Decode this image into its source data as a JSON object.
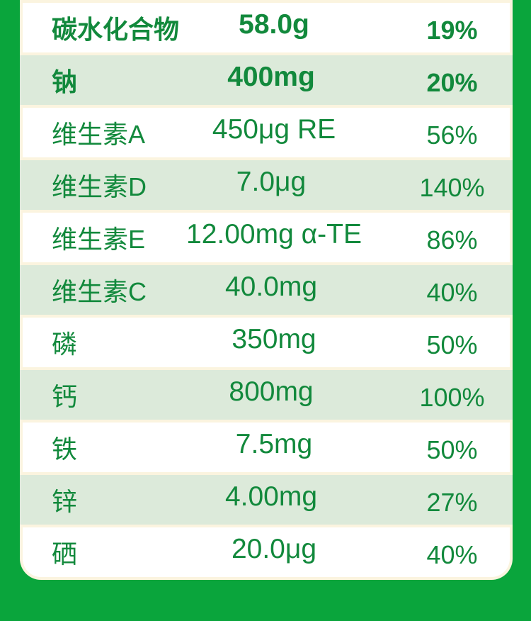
{
  "theme": {
    "background_green": "#0aa53c",
    "row_alt_green": "#dceada",
    "row_white": "#ffffff",
    "card_cream_border": "#fbf4df",
    "text_green": "#12893c"
  },
  "nutrition_table": {
    "columns": [
      "nutrient",
      "amount",
      "nrv_percent"
    ],
    "rows": [
      {
        "nutrient": "碳水化合物",
        "amount": "58.0g",
        "nrv_percent": "19%",
        "bold": true
      },
      {
        "nutrient": "钠",
        "amount": "400mg",
        "nrv_percent": "20%",
        "bold": true
      },
      {
        "nutrient": "维生素A",
        "amount": "450μg RE",
        "nrv_percent": "56%",
        "bold": false
      },
      {
        "nutrient": "维生素D",
        "amount": "7.0μg",
        "nrv_percent": "140%",
        "bold": false
      },
      {
        "nutrient": "维生素E",
        "amount": "12.00mg α-TE",
        "nrv_percent": "86%",
        "bold": false
      },
      {
        "nutrient": "维生素C",
        "amount": "40.0mg",
        "nrv_percent": "40%",
        "bold": false
      },
      {
        "nutrient": "磷",
        "amount": "350mg",
        "nrv_percent": "50%",
        "bold": false
      },
      {
        "nutrient": "钙",
        "amount": "800mg",
        "nrv_percent": "100%",
        "bold": false
      },
      {
        "nutrient": "铁",
        "amount": "7.5mg",
        "nrv_percent": "50%",
        "bold": false
      },
      {
        "nutrient": "锌",
        "amount": "4.00mg",
        "nrv_percent": "27%",
        "bold": false
      },
      {
        "nutrient": "硒",
        "amount": "20.0μg",
        "nrv_percent": "40%",
        "bold": false
      }
    ]
  }
}
